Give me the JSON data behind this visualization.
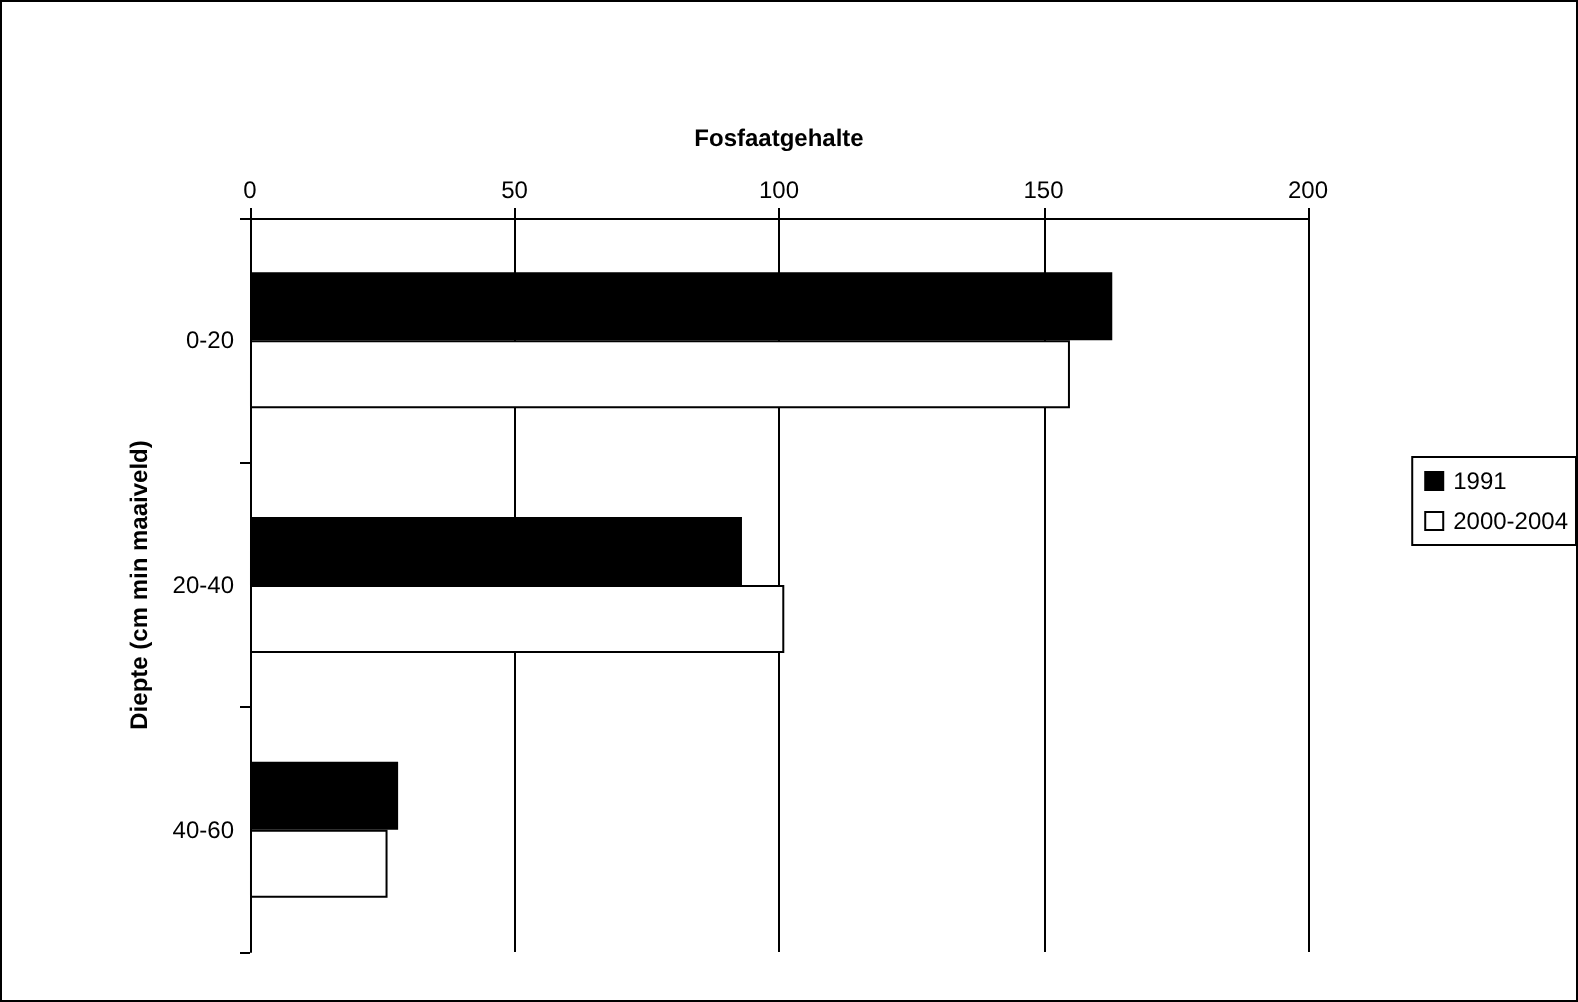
{
  "chart_data": {
    "type": "bar",
    "orientation": "horizontal",
    "xlabel": "Fosfaatgehalte",
    "ylabel": "Diepte (cm min maaiveld)",
    "categories": [
      "0-20",
      "20-40",
      "40-60"
    ],
    "series": [
      {
        "name": "1991",
        "color": "#000000",
        "values": [
          163,
          93,
          28
        ]
      },
      {
        "name": "2000-2004",
        "color": "#ffffff",
        "values": [
          155,
          101,
          26
        ]
      }
    ],
    "xlim": [
      0,
      200
    ],
    "xticks": [
      0,
      50,
      100,
      150,
      200
    ],
    "grid": "x",
    "legend": "right"
  }
}
